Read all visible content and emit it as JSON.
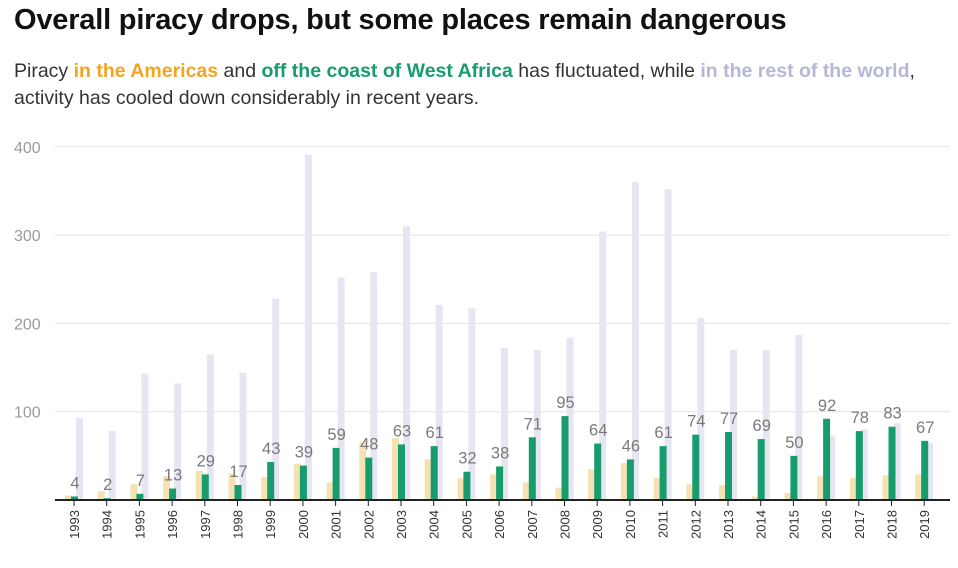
{
  "title": "Overall piracy drops, but some places remain dangerous",
  "subtitle": {
    "t1": "Piracy ",
    "americas": "in the Americas",
    "t2": " and ",
    "west_africa": "off the coast of West Africa",
    "t3": " has fluctuated, while ",
    "rest": "in the rest of the world",
    "t4": ", activity has cooled down considerably in recent years."
  },
  "colors": {
    "americas": "#f5e2b3",
    "americas_text": "#f3a51f",
    "west_africa": "#179c6e",
    "rest": "#e6e6f2",
    "rest_text": "#b4b7d8",
    "grid": "#e3e3e3",
    "axis": "#222222",
    "label": "#7a7a7a"
  },
  "chart_data": {
    "type": "bar",
    "categories": [
      "1993",
      "1994",
      "1995",
      "1996",
      "1997",
      "1998",
      "1999",
      "2000",
      "2001",
      "2002",
      "2003",
      "2004",
      "2005",
      "2006",
      "2007",
      "2008",
      "2009",
      "2010",
      "2011",
      "2012",
      "2013",
      "2014",
      "2015",
      "2016",
      "2017",
      "2018",
      "2019"
    ],
    "series": [
      {
        "name": "in the Americas",
        "values": [
          5,
          10,
          18,
          27,
          33,
          30,
          26,
          41,
          20,
          65,
          70,
          46,
          25,
          29,
          20,
          14,
          35,
          42,
          25,
          18,
          17,
          4,
          8,
          27,
          25,
          28,
          29
        ]
      },
      {
        "name": "off the coast of West Africa",
        "values": [
          4,
          2,
          7,
          13,
          29,
          17,
          43,
          39,
          59,
          48,
          63,
          61,
          32,
          38,
          71,
          95,
          64,
          46,
          61,
          74,
          77,
          69,
          50,
          92,
          78,
          83,
          67
        ],
        "data_labels": true
      },
      {
        "name": "in the rest of the world",
        "values": [
          93,
          78,
          143,
          132,
          165,
          144,
          228,
          391,
          252,
          258,
          310,
          221,
          217,
          172,
          170,
          184,
          304,
          360,
          352,
          206,
          170,
          170,
          187,
          73,
          80,
          87,
          65
        ]
      }
    ],
    "y_ticks": [
      100,
      200,
      300,
      400
    ],
    "ylim": [
      0,
      420
    ],
    "grid": true,
    "legend": "none (colored words in subtitle)"
  }
}
